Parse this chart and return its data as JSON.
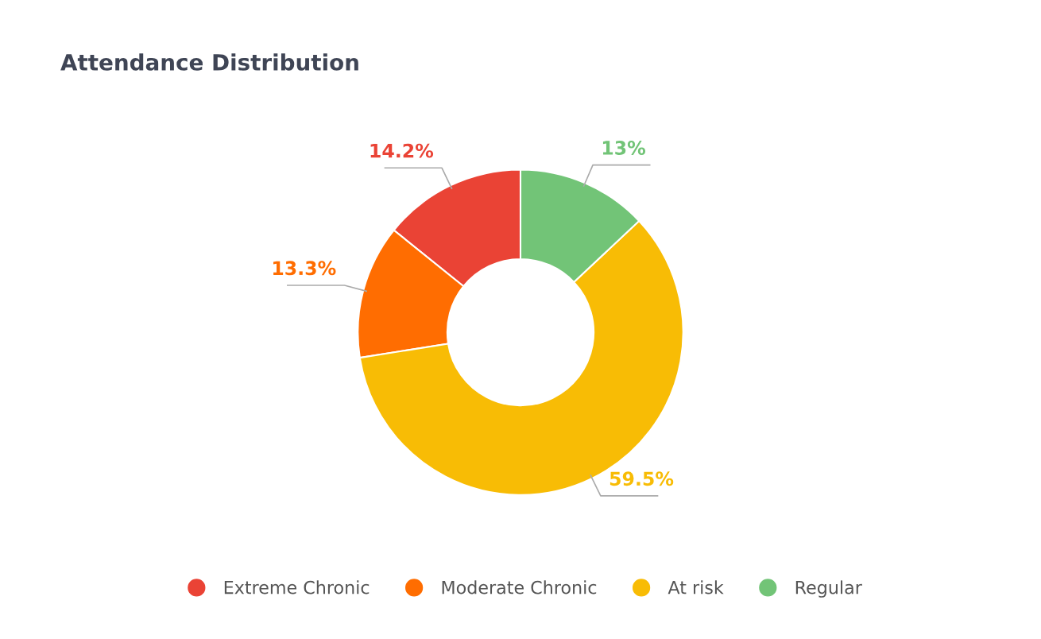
{
  "chart_data": {
    "type": "donut",
    "title": "Attendance Distribution",
    "categories": [
      "Extreme Chronic",
      "Moderate Chronic",
      "At risk",
      "Regular"
    ],
    "values": [
      14.2,
      13.3,
      59.5,
      13
    ],
    "colors": [
      "#ea4335",
      "#ff6d01",
      "#f8bc05",
      "#72c477"
    ],
    "value_labels": [
      "14.2%",
      "13.3%",
      "59.5%",
      "13%"
    ],
    "legend": "bottom"
  }
}
